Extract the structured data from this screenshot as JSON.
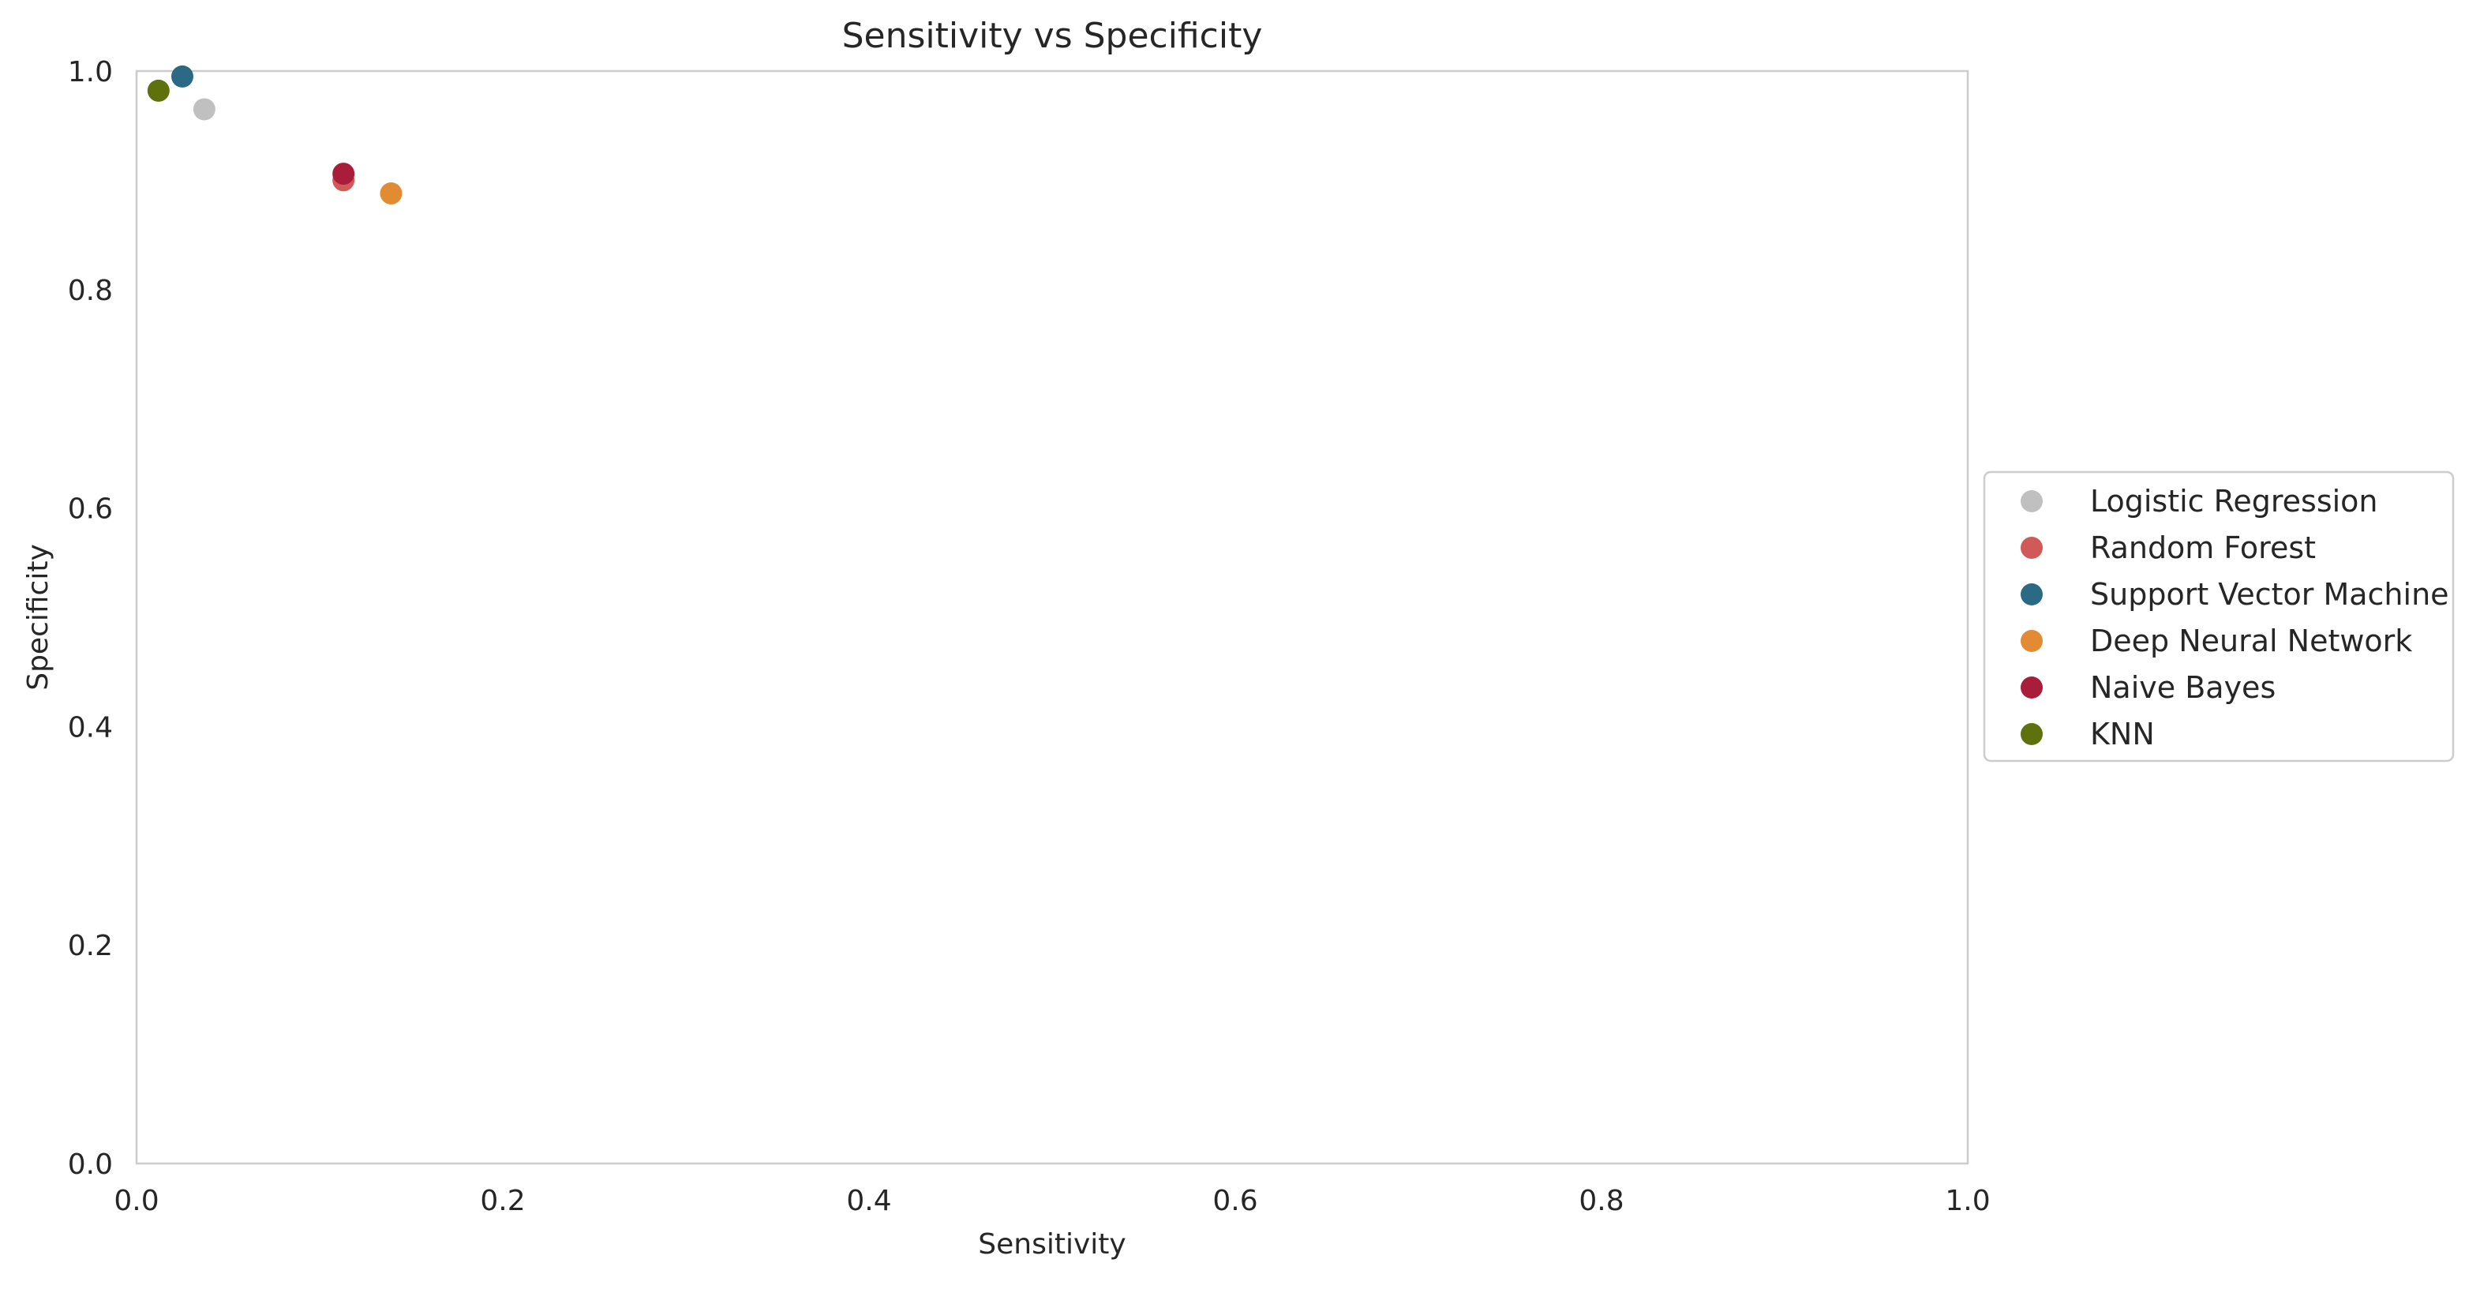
{
  "chart_data": {
    "type": "scatter",
    "title": "Sensitivity vs Specificity",
    "xlabel": "Sensitivity",
    "ylabel": "Specificity",
    "xlim": [
      0.0,
      1.0
    ],
    "ylim": [
      0.0,
      1.0
    ],
    "x_ticks": [
      "0.0",
      "0.2",
      "0.4",
      "0.6",
      "0.8",
      "1.0"
    ],
    "y_ticks": [
      "0.0",
      "0.2",
      "0.4",
      "0.6",
      "0.8",
      "1.0"
    ],
    "grid": false,
    "legend_position": "center-right (outside plot)",
    "series": [
      {
        "name": "Logistic Regression",
        "color": "#c0c0c0",
        "points": [
          {
            "x": 0.037,
            "y": 0.965
          }
        ]
      },
      {
        "name": "Random Forest",
        "color": "#d05a5a",
        "points": [
          {
            "x": 0.113,
            "y": 0.9
          }
        ]
      },
      {
        "name": "Support Vector Machine",
        "color": "#2a6a84",
        "points": [
          {
            "x": 0.025,
            "y": 0.995
          }
        ]
      },
      {
        "name": "Deep Neural Network",
        "color": "#e38b32",
        "points": [
          {
            "x": 0.139,
            "y": 0.888
          }
        ]
      },
      {
        "name": "Naive Bayes",
        "color": "#a81d3a",
        "points": [
          {
            "x": 0.113,
            "y": 0.906
          }
        ]
      },
      {
        "name": "KNN",
        "color": "#5e710d",
        "points": [
          {
            "x": 0.012,
            "y": 0.982
          }
        ]
      }
    ]
  }
}
